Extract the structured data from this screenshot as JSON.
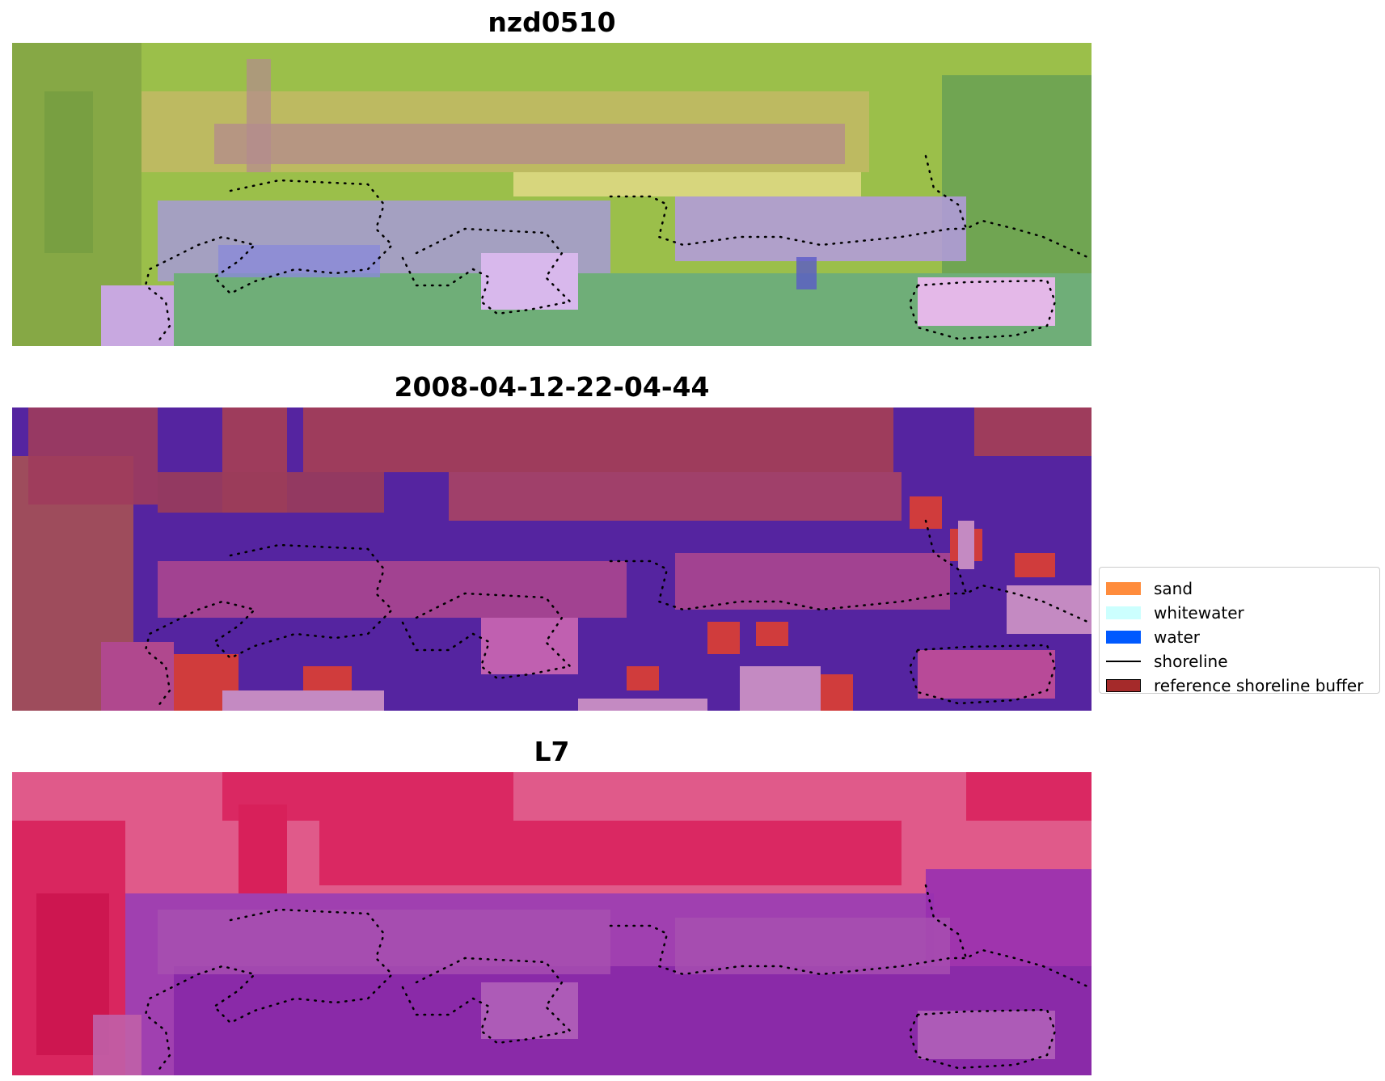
{
  "panels": [
    {
      "title": "nzd0510"
    },
    {
      "title": "2008-04-12-22-04-44"
    },
    {
      "title": "L7"
    }
  ],
  "legend": {
    "items": [
      {
        "label": "sand",
        "color": "#ff8c3c",
        "kind": "patch"
      },
      {
        "label": "whitewater",
        "color": "#ccfffe",
        "kind": "patch"
      },
      {
        "label": "water",
        "color": "#0059ff",
        "kind": "patch"
      },
      {
        "label": "shoreline",
        "color": "#000000",
        "kind": "line"
      },
      {
        "label": "reference shoreline buffer",
        "color": "#a52a2a",
        "kind": "patch"
      }
    ]
  },
  "colors": {
    "panel1": {
      "veg": "#9bbf4a",
      "dark_veg": "#6f9a40",
      "tan": "#c8b86a",
      "mauve": "#b48a8e",
      "purple": "#a69ad6",
      "pink": "#e4b8e8",
      "green": "#6fae78"
    },
    "panel2": {
      "background": "#5524a0",
      "brown": "#9e3c5c",
      "pink": "#b0488e",
      "red": "#d03c3c",
      "lilac": "#c48ac2"
    },
    "panel3": {
      "red": "#d8205a",
      "pink": "#e05a8a",
      "purple": "#8a2aa8",
      "violet": "#a040b0"
    }
  }
}
